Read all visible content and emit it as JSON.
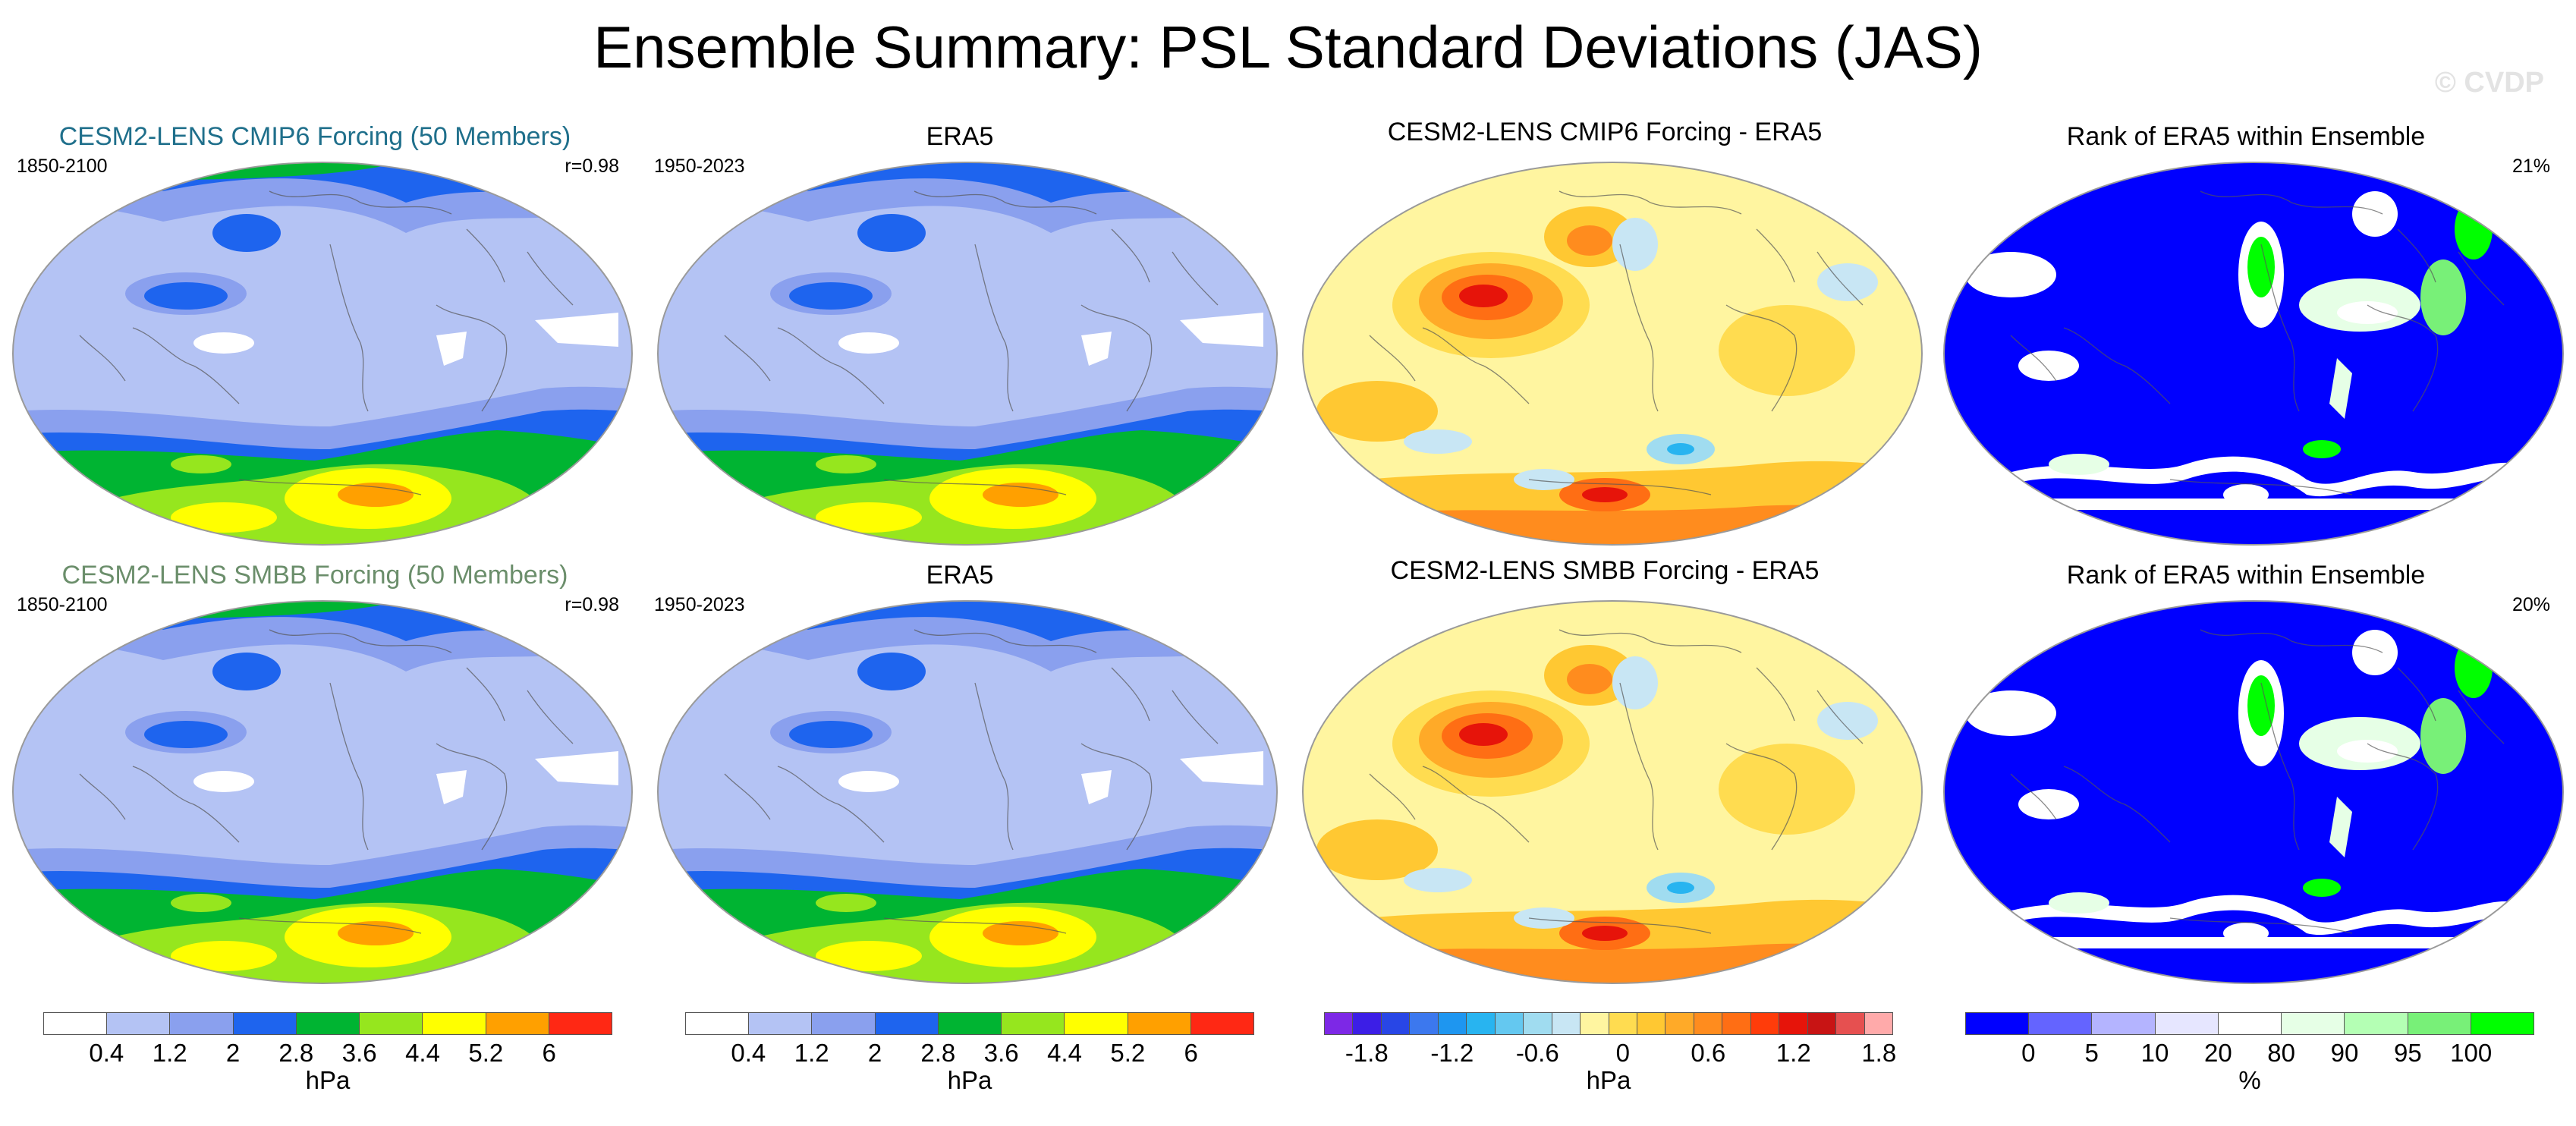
{
  "title": "Ensemble Summary: PSL Standard Deviations (JAS)",
  "watermark": "© CVDP",
  "rows": [
    {
      "panels": [
        {
          "kind": "std",
          "title": "CESM2-LENS CMIP6 Forcing (50 Members)",
          "title_color": "#1f6f8b",
          "left": "1850-2100",
          "right": "r=0.98"
        },
        {
          "kind": "std",
          "title": "ERA5",
          "title_color": "#000000",
          "left": "1950-2023",
          "right": ""
        },
        {
          "kind": "diff",
          "title": "CESM2-LENS CMIP6 Forcing - ERA5",
          "title_color": "#000000",
          "left": "",
          "right": ""
        },
        {
          "kind": "rank",
          "title": "Rank of ERA5 within Ensemble",
          "title_color": "#000000",
          "left": "",
          "right": "21%"
        }
      ]
    },
    {
      "panels": [
        {
          "kind": "std",
          "title": "CESM2-LENS SMBB Forcing (50 Members)",
          "title_color": "#6b8e6b",
          "left": "1850-2100",
          "right": "r=0.98"
        },
        {
          "kind": "std",
          "title": "ERA5",
          "title_color": "#000000",
          "left": "1950-2023",
          "right": ""
        },
        {
          "kind": "diff",
          "title": "CESM2-LENS SMBB Forcing - ERA5",
          "title_color": "#000000",
          "left": "",
          "right": ""
        },
        {
          "kind": "rank",
          "title": "Rank of ERA5 within Ensemble",
          "title_color": "#000000",
          "left": "",
          "right": "20%"
        }
      ]
    }
  ],
  "colorbars": [
    {
      "id": "std-1",
      "unit": "hPa",
      "colors": [
        "#ffffff",
        "#b4c3f4",
        "#8aa0ee",
        "#1e64ee",
        "#00b432",
        "#96e61e",
        "#ffff00",
        "#ffa000",
        "#ff2814"
      ],
      "labels": [
        "0.4",
        "1.2",
        "2",
        "2.8",
        "3.6",
        "4.4",
        "5.2",
        "6"
      ]
    },
    {
      "id": "std-2",
      "unit": "hPa",
      "colors": [
        "#ffffff",
        "#b4c3f4",
        "#8aa0ee",
        "#1e64ee",
        "#00b432",
        "#96e61e",
        "#ffff00",
        "#ffa000",
        "#ff2814"
      ],
      "labels": [
        "0.4",
        "1.2",
        "2",
        "2.8",
        "3.6",
        "4.4",
        "5.2",
        "6"
      ]
    },
    {
      "id": "diff",
      "unit": "hPa",
      "colors": [
        "#7d28e6",
        "#3c1ee6",
        "#2846e6",
        "#3c78ee",
        "#1e96f0",
        "#28b4f0",
        "#64c8f0",
        "#a0dcf0",
        "#c8e6f4",
        "#fff5a0",
        "#ffdc50",
        "#ffc832",
        "#ffaa28",
        "#ff8c1e",
        "#ff6e14",
        "#ff3c0a",
        "#e6140a",
        "#c81414",
        "#e65050",
        "#ffaaaa"
      ],
      "labels": [
        "-1.8",
        "-1.2",
        "-0.6",
        "0",
        "0.6",
        "1.2",
        "1.8"
      ],
      "label_slots": [
        1.5,
        4.5,
        7.5,
        10.5,
        13.5,
        16.5,
        19.5
      ],
      "n": 20
    },
    {
      "id": "rank",
      "unit": "%",
      "colors": [
        "#0000ff",
        "#6464ff",
        "#b4b4ff",
        "#e6e6ff",
        "#ffffff",
        "#e6ffe6",
        "#b4ffb4",
        "#78f078",
        "#00ff00"
      ],
      "labels": [
        "0",
        "5",
        "10",
        "20",
        "80",
        "90",
        "95",
        "100"
      ]
    }
  ]
}
